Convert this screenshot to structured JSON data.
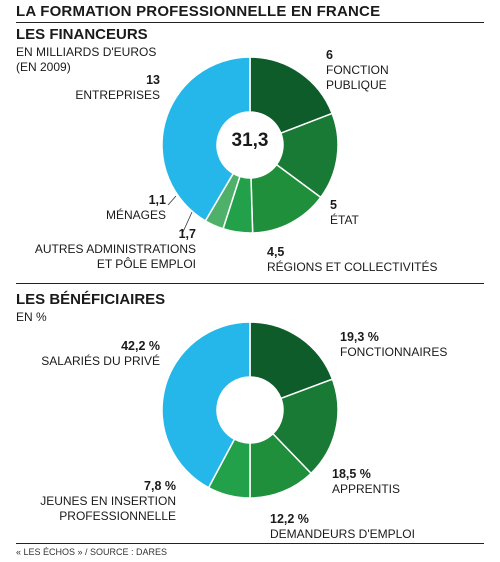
{
  "title": "LA FORMATION PROFESSIONNELLE EN FRANCE",
  "footer": "« LES ÉCHOS » / SOURCE : DARES",
  "colors": {
    "light_blue": "#25b7ea",
    "dark_green": "#0d5c2a",
    "green": "#187a34",
    "mid_green": "#1f8f3c",
    "bright_green": "#23a14a",
    "pale_green": "#4fb06a"
  },
  "chart_data": [
    {
      "type": "pie",
      "title": "LES FINANCEURS",
      "subtitle": [
        "EN MILLIARDS D'EUROS",
        "(EN 2009)"
      ],
      "total_label": "31,3",
      "slices": [
        {
          "name": "FONCTION PUBLIQUE",
          "value": 6,
          "value_label": "6",
          "color": "#0d5c2a"
        },
        {
          "name": "ÉTAT",
          "value": 5,
          "value_label": "5",
          "color": "#187a34"
        },
        {
          "name": "RÉGIONS ET COLLECTIVITÉS",
          "value": 4.5,
          "value_label": "4,5",
          "color": "#1f8f3c"
        },
        {
          "name": "AUTRES ADMINISTRATIONS ET PÔLE EMPLOI",
          "value": 1.7,
          "value_label": "1,7",
          "color": "#23a14a"
        },
        {
          "name": "MÉNAGES",
          "value": 1.1,
          "value_label": "1,1",
          "color": "#4fb06a"
        },
        {
          "name": "ENTREPRISES",
          "value": 13,
          "value_label": "13",
          "color": "#25b7ea"
        }
      ]
    },
    {
      "type": "pie",
      "title": "LES BÉNÉFICIAIRES",
      "subtitle": [
        "EN %"
      ],
      "slices": [
        {
          "name": "FONCTIONNAIRES",
          "value": 19.3,
          "value_label": "19,3 %",
          "color": "#0d5c2a"
        },
        {
          "name": "APPRENTIS",
          "value": 18.5,
          "value_label": "18,5 %",
          "color": "#187a34"
        },
        {
          "name": "DEMANDEURS D'EMPLOI",
          "value": 12.2,
          "value_label": "12,2 %",
          "color": "#1f8f3c"
        },
        {
          "name": "JEUNES EN INSERTION PROFESSIONNELLE",
          "value": 7.8,
          "value_label": "7,8 %",
          "color": "#23a14a"
        },
        {
          "name": "SALARIÉS DU PRIVÉ",
          "value": 42.2,
          "value_label": "42,2 %",
          "color": "#25b7ea"
        }
      ]
    }
  ],
  "labels": {
    "financeurs": {
      "fonction_publique": [
        "FONCTION",
        "PUBLIQUE"
      ],
      "etat": "ÉTAT",
      "regions": "RÉGIONS ET COLLECTIVITÉS",
      "autres": [
        "AUTRES ADMINISTRATIONS",
        "ET PÔLE EMPLOI"
      ],
      "menages": "MÉNAGES",
      "entreprises": "ENTREPRISES"
    },
    "beneficiaires": {
      "fonctionnaires": "FONCTIONNAIRES",
      "apprentis": "APPRENTIS",
      "demandeurs": "DEMANDEURS D'EMPLOI",
      "jeunes": [
        "JEUNES EN INSERTION",
        "PROFESSIONNELLE"
      ],
      "salaries": "SALARIÉS DU PRIVÉ"
    }
  }
}
